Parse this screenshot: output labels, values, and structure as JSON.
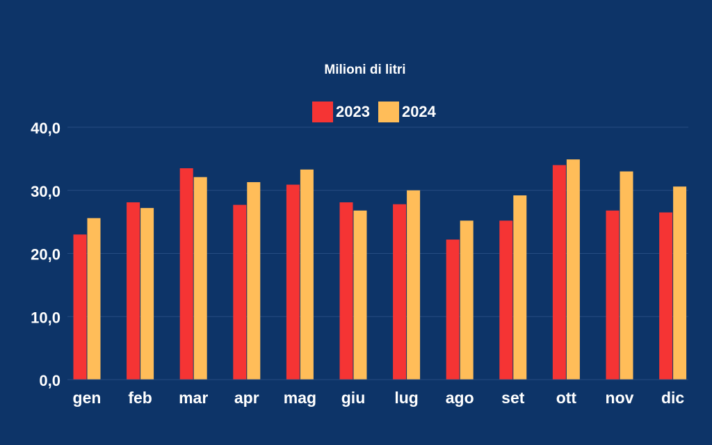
{
  "chart_data": {
    "type": "bar",
    "title": "",
    "subtitle": "Milioni di litri",
    "categories": [
      "gen",
      "feb",
      "mar",
      "apr",
      "mag",
      "giu",
      "lug",
      "ago",
      "set",
      "ott",
      "nov",
      "dic"
    ],
    "series": [
      {
        "name": "2023",
        "color": "#f53434",
        "values": [
          23.0,
          28.1,
          33.5,
          27.7,
          30.9,
          28.1,
          27.8,
          22.2,
          25.2,
          34.0,
          26.8,
          26.5
        ]
      },
      {
        "name": "2024",
        "color": "#ffbd59",
        "values": [
          25.6,
          27.2,
          32.1,
          31.3,
          33.3,
          26.8,
          30.0,
          25.2,
          29.2,
          34.9,
          33.0,
          30.6
        ]
      }
    ],
    "ylim": [
      0,
      40
    ],
    "yticks": [
      0,
      10,
      20,
      30,
      40
    ],
    "ytick_labels": [
      "0,0",
      "10,0",
      "20,0",
      "30,0",
      "40,0"
    ],
    "grid": true,
    "legend_position": "top-center"
  }
}
